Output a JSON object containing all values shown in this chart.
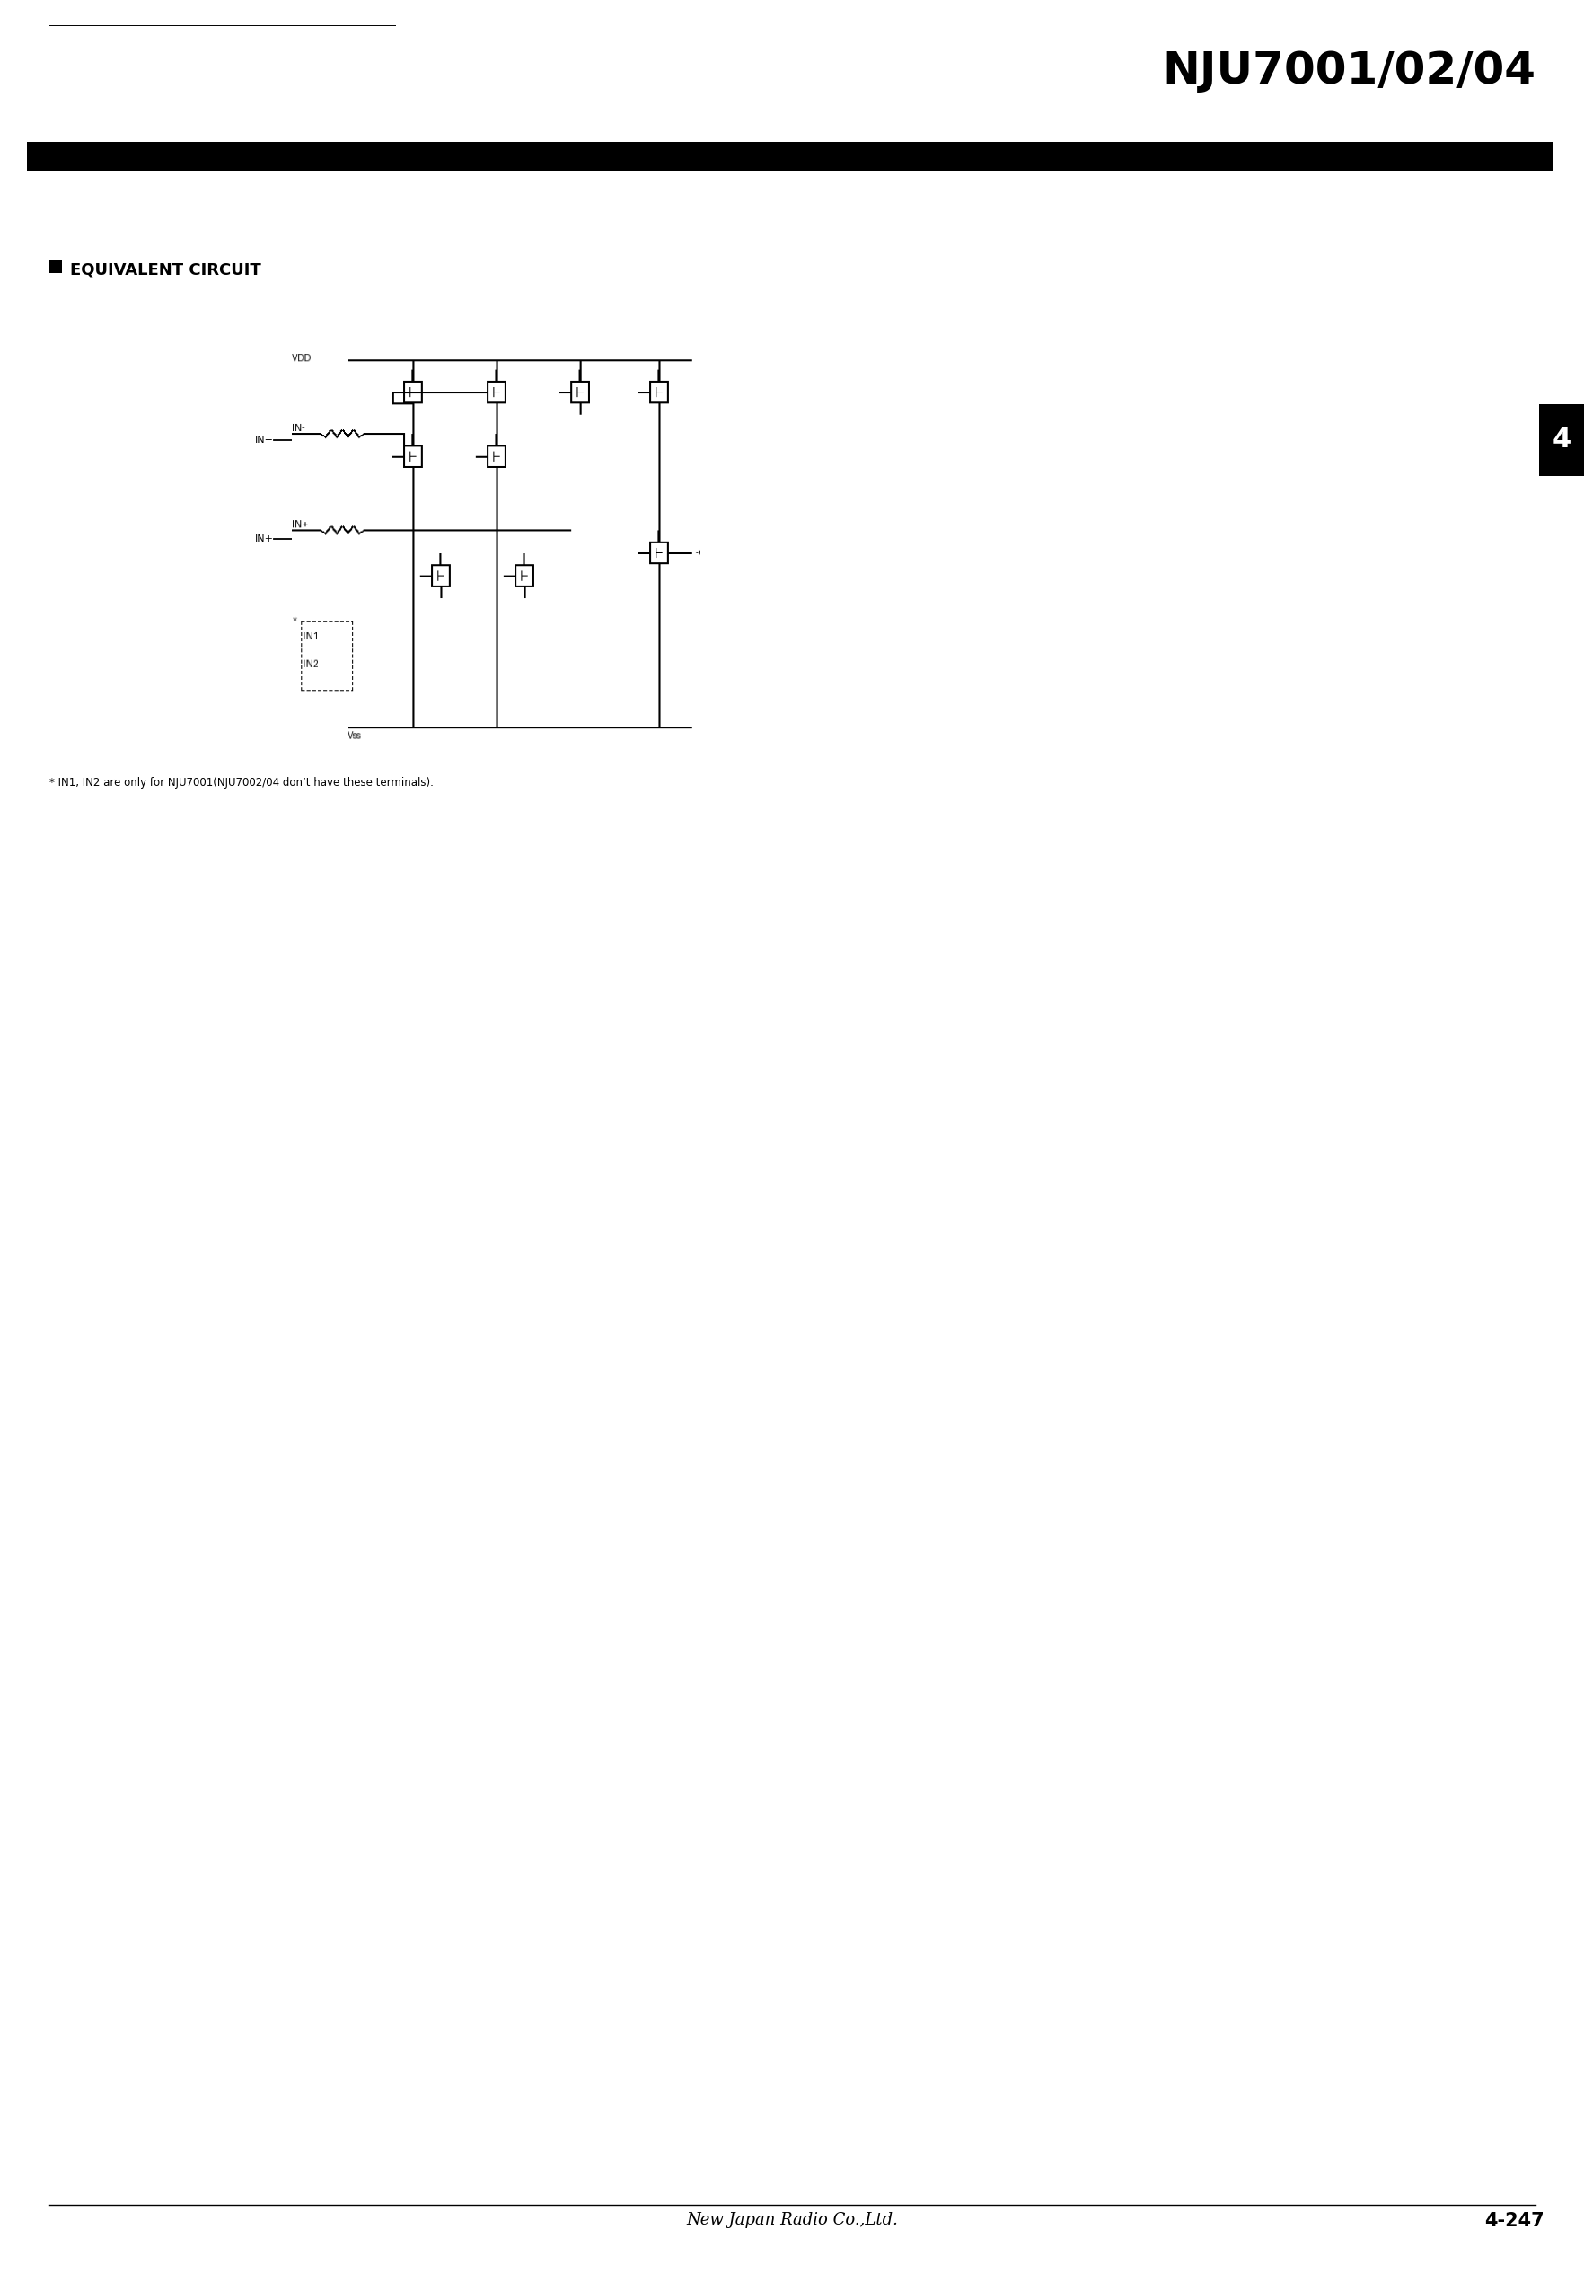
{
  "title": "NJU7001/02/04",
  "section_title": "EQUIVALENT CIRCUIT",
  "footnote": "* IN1, IN2 are only for NJU7001(NJU7002/04 don’t have these terminals).",
  "footer_left": "New Japan Radio Co.,Ltd.",
  "footer_right": "4-247",
  "tab_number": "4",
  "bg_color": "#ffffff",
  "black_color": "#000000"
}
